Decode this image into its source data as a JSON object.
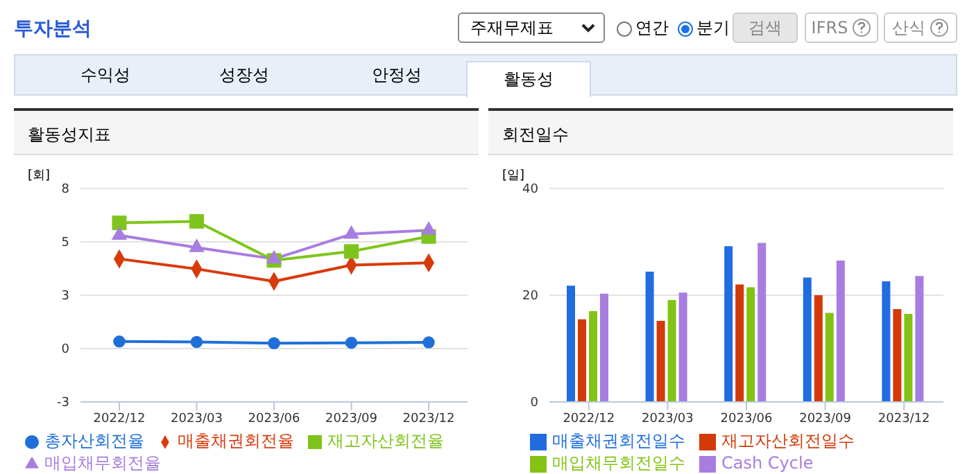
{
  "chart_data": [
    {
      "type": "other",
      "title": "투자분석",
      "annotations": [
        "주재무제표",
        "연간",
        "분기",
        "검색",
        "IFRS",
        "산식",
        "수익성",
        "성장성",
        "안정성",
        "활동성"
      ]
    },
    {
      "type": "line",
      "title": "활동성지표",
      "ylabel": "[회]",
      "categories": [
        "2022/12",
        "2023/03",
        "2023/06",
        "2023/09",
        "2023/12"
      ],
      "ylim": [
        -2.5,
        7.5
      ],
      "yticks": [
        {
          "value": -2.5,
          "label": "-3"
        },
        0,
        {
          "value": 2.5,
          "label": "3"
        },
        5,
        {
          "value": 7.5,
          "label": "8"
        }
      ],
      "grid": "y",
      "legend": "bottom",
      "series": [
        {
          "name": "총자산회전율",
          "color": "#1f6fd9",
          "marker": "circle",
          "values": [
            0.33,
            0.31,
            0.25,
            0.27,
            0.29
          ]
        },
        {
          "name": "매출채권회전율",
          "color": "#d93a0b",
          "marker": "diamond",
          "values": [
            4.2,
            3.73,
            3.15,
            3.91,
            4.02
          ]
        },
        {
          "name": "재고자산회전율",
          "color": "#7fc41c",
          "marker": "square",
          "values": [
            5.89,
            5.96,
            4.13,
            4.55,
            5.25
          ]
        },
        {
          "name": "매입채무회전율",
          "color": "#a87de0",
          "marker": "triangle",
          "values": [
            5.31,
            4.73,
            4.2,
            5.36,
            5.54
          ]
        }
      ]
    },
    {
      "type": "bar",
      "title": "회전일수",
      "ylabel": "[일]",
      "categories": [
        "2022/12",
        "2023/03",
        "2023/06",
        "2023/09",
        "2023/12"
      ],
      "ylim": [
        0,
        40
      ],
      "yticks": [
        0,
        20,
        40
      ],
      "grid": "y",
      "legend": "bottom",
      "series": [
        {
          "name": "매출채권회전일수",
          "color": "#1f6ddf",
          "values": [
            21.8,
            24.4,
            29.2,
            23.3,
            22.6
          ]
        },
        {
          "name": "재고자산회전일수",
          "color": "#d43a08",
          "values": [
            15.5,
            15.2,
            22.0,
            20.0,
            17.4
          ]
        },
        {
          "name": "매입채무회전일수",
          "color": "#83c315",
          "values": [
            17.0,
            19.1,
            21.5,
            16.7,
            16.5
          ]
        },
        {
          "name": "Cash Cycle",
          "color": "#a87de0",
          "values": [
            20.3,
            20.5,
            29.8,
            26.5,
            23.6
          ]
        }
      ]
    }
  ]
}
